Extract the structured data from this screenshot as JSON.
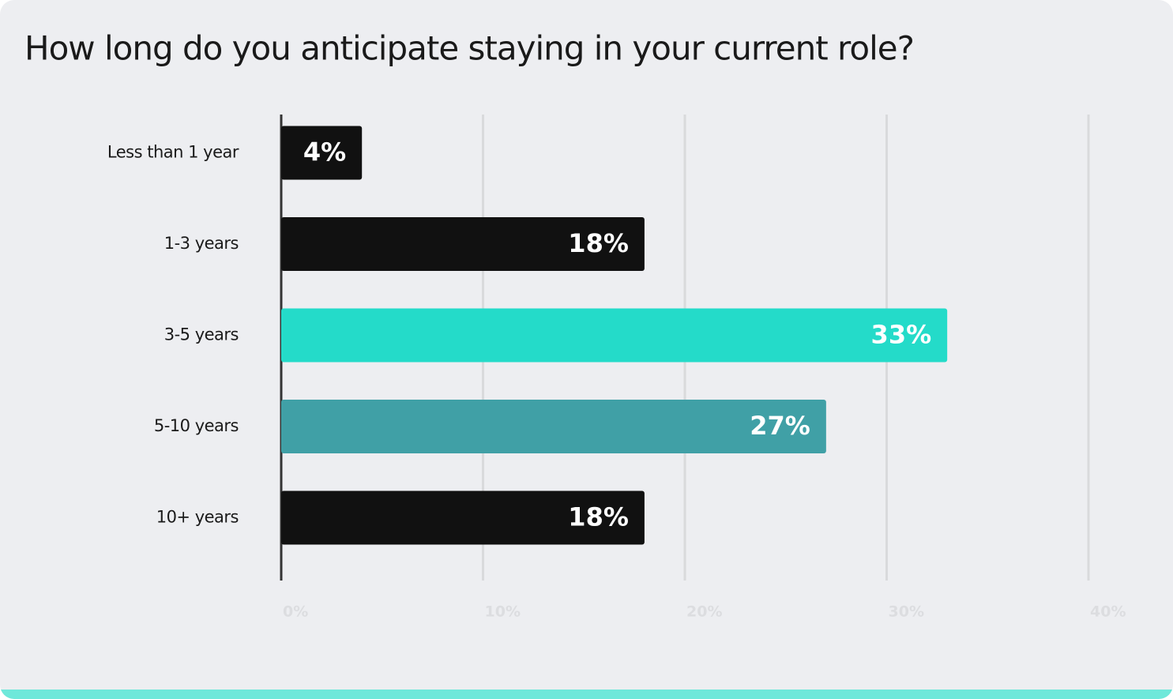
{
  "chart_data": {
    "type": "bar",
    "orientation": "horizontal",
    "title": "How long do you anticipate staying in your current role?",
    "categories": [
      "Less than 1 year",
      "1-3 years",
      "3-5 years",
      "5-10 years",
      "10+ years"
    ],
    "values": [
      4,
      18,
      33,
      27,
      18
    ],
    "value_labels": [
      "4%",
      "18%",
      "33%",
      "27%",
      "18%"
    ],
    "colors": [
      "#111111",
      "#111111",
      "#24dbc9",
      "#40a0a6",
      "#111111"
    ],
    "xlim": [
      0,
      40
    ],
    "xticks": [
      {
        "value": 0,
        "label": "0%"
      },
      {
        "value": 10,
        "label": "10%"
      },
      {
        "value": 20,
        "label": "20%"
      },
      {
        "value": 30,
        "label": "30%"
      },
      {
        "value": 40,
        "label": "40%"
      }
    ],
    "grid": true
  }
}
